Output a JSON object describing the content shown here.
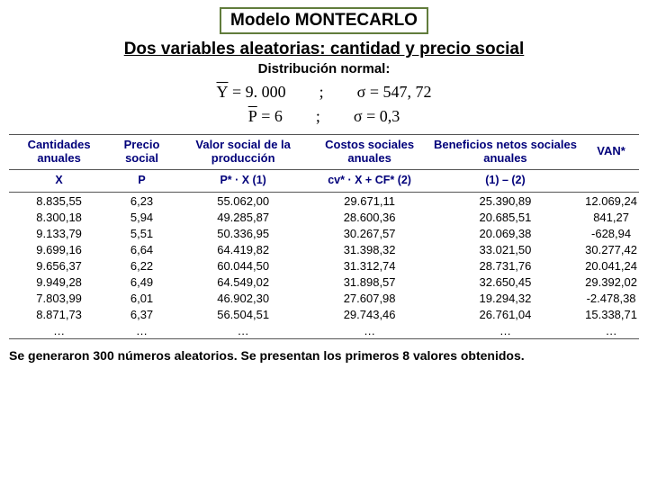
{
  "title": "Modelo MONTECARLO",
  "subtitle": "Dos variables aleatorias: cantidad y precio social",
  "dist_label": "Distribución normal:",
  "formula": {
    "y_mean_lhs": "Y",
    "y_mean_rhs": "= 9. 000",
    "y_sigma": "σ = 547, 72",
    "p_mean_lhs": "P",
    "p_mean_rhs": "= 6",
    "p_sigma": "σ = 0,3",
    "sep": ";"
  },
  "table": {
    "headers": [
      "Cantidades anuales",
      "Precio social",
      "Valor social de la producción",
      "Costos sociales anuales",
      "Beneficios netos sociales anuales",
      "VAN*"
    ],
    "sub_headers": [
      "X",
      "P",
      "P* · X (1)",
      "cv* · X + CF* (2)",
      "(1) – (2)",
      ""
    ],
    "rows": [
      [
        "8.835,55",
        "6,23",
        "55.062,00",
        "29.671,11",
        "25.390,89",
        "12.069,24"
      ],
      [
        "8.300,18",
        "5,94",
        "49.285,87",
        "28.600,36",
        "20.685,51",
        "841,27"
      ],
      [
        "9.133,79",
        "5,51",
        "50.336,95",
        "30.267,57",
        "20.069,38",
        "-628,94"
      ],
      [
        "9.699,16",
        "6,64",
        "64.419,82",
        "31.398,32",
        "33.021,50",
        "30.277,42"
      ],
      [
        "9.656,37",
        "6,22",
        "60.044,50",
        "31.312,74",
        "28.731,76",
        "20.041,24"
      ],
      [
        "9.949,28",
        "6,49",
        "64.549,02",
        "31.898,57",
        "32.650,45",
        "29.392,02"
      ],
      [
        "7.803,99",
        "6,01",
        "46.902,30",
        "27.607,98",
        "19.294,32",
        "-2.478,38"
      ],
      [
        "8.871,73",
        "6,37",
        "56.504,51",
        "29.743,46",
        "26.761,04",
        "15.338,71"
      ],
      [
        "…",
        "…",
        "…",
        "…",
        "…",
        "…"
      ]
    ]
  },
  "footer": "Se generaron 300 números aleatorios. Se presentan los primeros 8 valores obtenidos.",
  "colors": {
    "border_green": "#617c3c",
    "header_blue": "#00007a",
    "rule_gray": "#555555",
    "text_black": "#000000",
    "background": "#ffffff"
  }
}
